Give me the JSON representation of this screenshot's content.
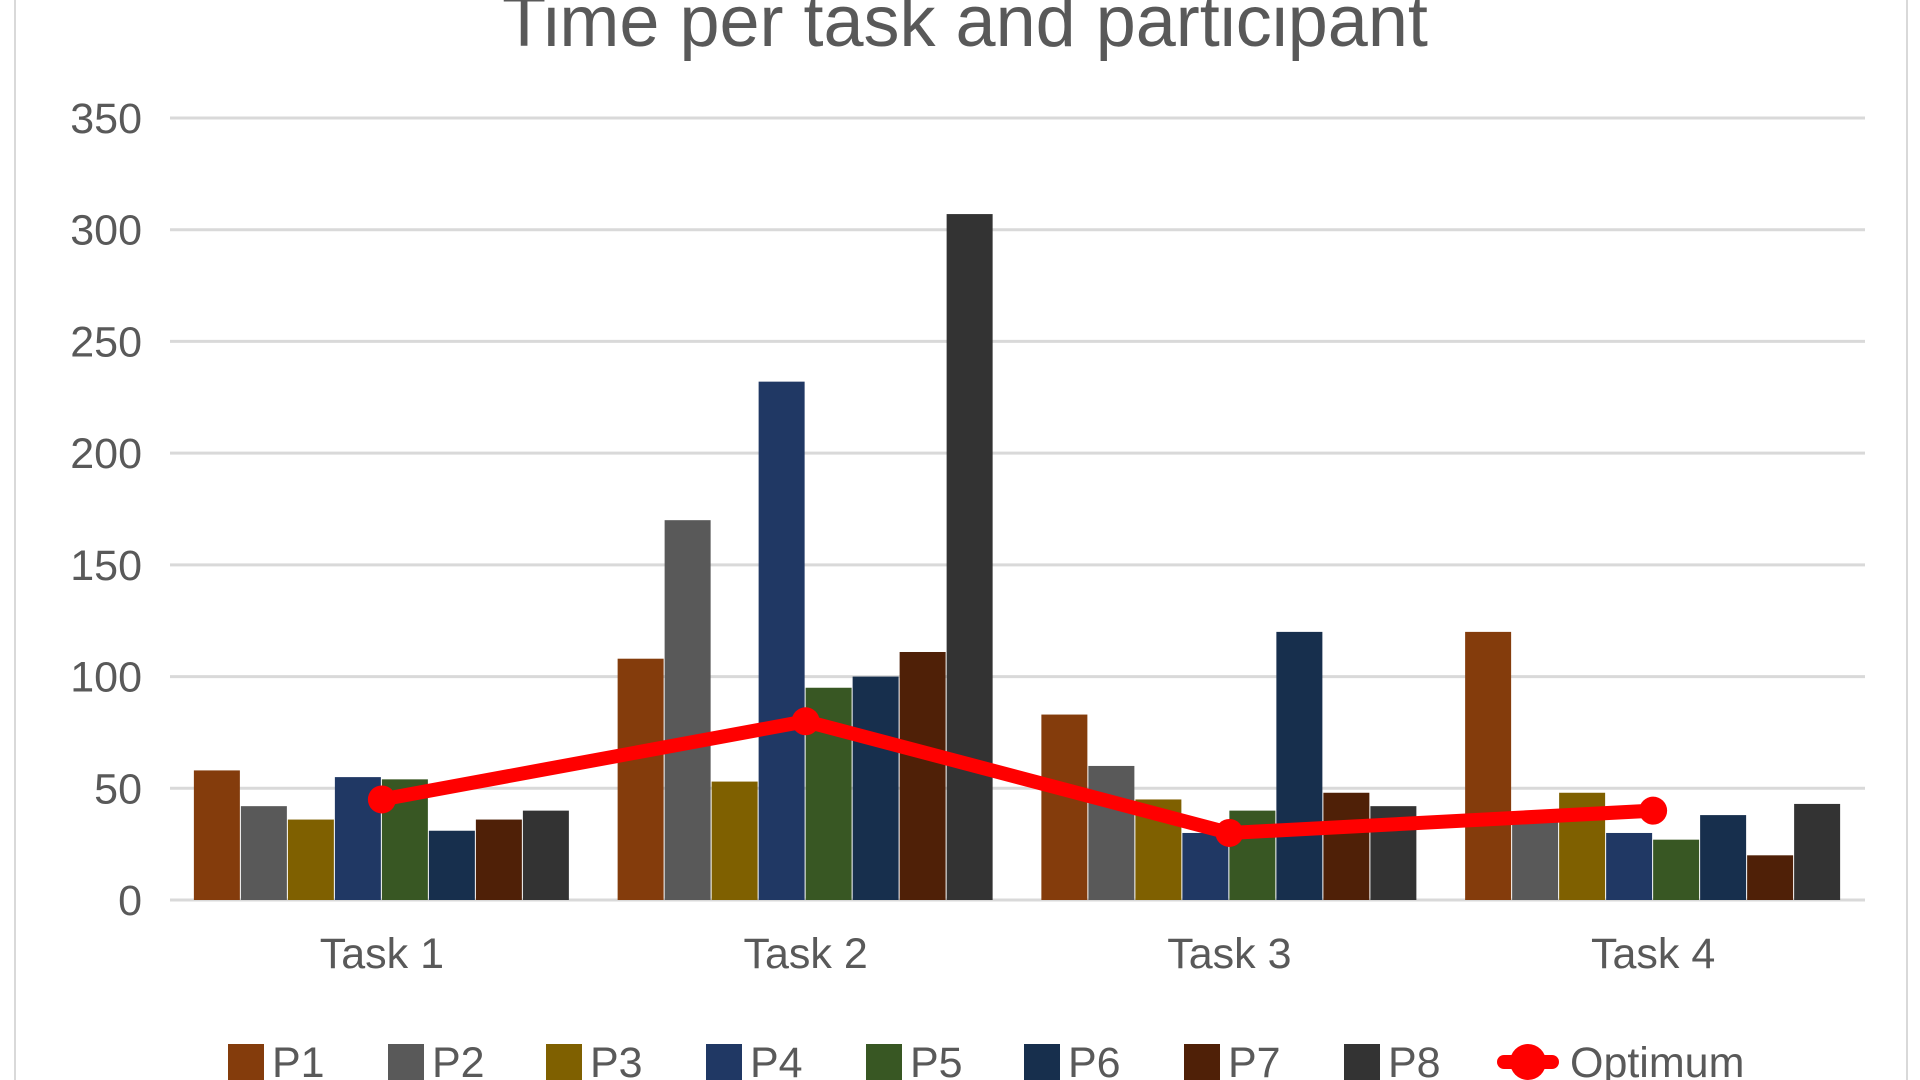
{
  "chart_data": {
    "type": "bar",
    "title": "Time per task and participant",
    "categories": [
      "Task 1",
      "Task 2",
      "Task 3",
      "Task 4"
    ],
    "ylim": [
      0,
      350
    ],
    "yticks": [
      0,
      50,
      100,
      150,
      200,
      250,
      300,
      350
    ],
    "grid": true,
    "legend_position": "bottom",
    "series": [
      {
        "name": "P1",
        "color": "#843C0C",
        "values": [
          58,
          108,
          83,
          120
        ]
      },
      {
        "name": "P2",
        "color": "#595959",
        "values": [
          42,
          170,
          60,
          35
        ]
      },
      {
        "name": "P3",
        "color": "#7F6000",
        "values": [
          36,
          53,
          45,
          48
        ]
      },
      {
        "name": "P4",
        "color": "#203864",
        "values": [
          55,
          232,
          30,
          30
        ]
      },
      {
        "name": "P5",
        "color": "#385723",
        "values": [
          54,
          95,
          40,
          27
        ]
      },
      {
        "name": "P6",
        "color": "#172F4D",
        "values": [
          31,
          100,
          120,
          38
        ]
      },
      {
        "name": "P7",
        "color": "#4F2007",
        "values": [
          36,
          111,
          48,
          20
        ]
      },
      {
        "name": "P8",
        "color": "#333333",
        "values": [
          40,
          307,
          42,
          43
        ]
      }
    ],
    "line_series": {
      "name": "Optimum",
      "color": "#FF0000",
      "values": [
        45,
        80,
        30,
        40
      ]
    }
  }
}
